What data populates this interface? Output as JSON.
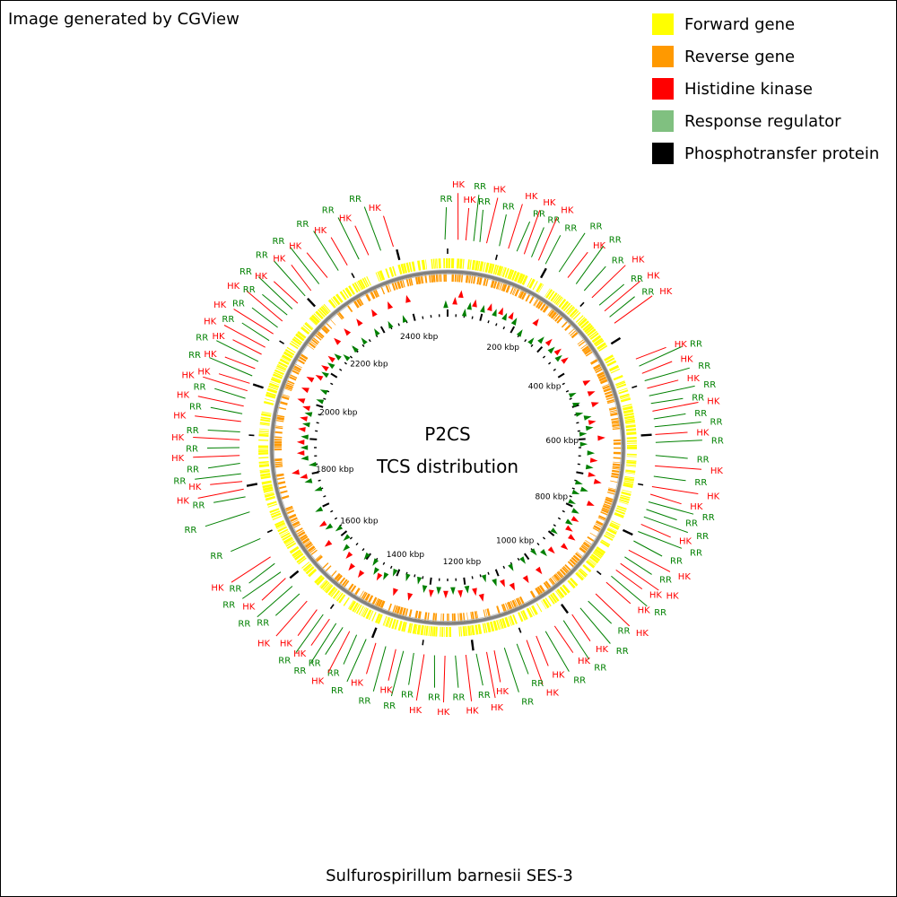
{
  "credit": "Image generated by CGView",
  "organism": "Sulfurospirillum barnesii SES-3",
  "center": {
    "line1": "P2CS",
    "line2": "TCS distribution"
  },
  "legend": [
    {
      "label": "Forward gene",
      "color": "#ffff00"
    },
    {
      "label": "Reverse gene",
      "color": "#ff9900"
    },
    {
      "label": "Histidine kinase",
      "color": "#ff0000"
    },
    {
      "label": "Response regulator",
      "color": "#80c080"
    },
    {
      "label": "Phosphotransfer protein",
      "color": "#000000"
    }
  ],
  "colors": {
    "hk": "#ff0000",
    "rr": "#008000",
    "forward": "#ffff00",
    "reverse": "#ff9900",
    "backbone": "#808080"
  },
  "genome": {
    "length_kbp": 2500,
    "tick_labels": [
      {
        "kbp": 200,
        "label": "200 kbp"
      },
      {
        "kbp": 400,
        "label": "400 kbp"
      },
      {
        "kbp": 600,
        "label": "600 kbp"
      },
      {
        "kbp": 800,
        "label": "800 kbp"
      },
      {
        "kbp": 1000,
        "label": "1000 kbp"
      },
      {
        "kbp": 1200,
        "label": "1200 kbp"
      },
      {
        "kbp": 1400,
        "label": "1400 kbp"
      },
      {
        "kbp": 1600,
        "label": "1600 kbp"
      },
      {
        "kbp": 1800,
        "label": "1800 kbp"
      },
      {
        "kbp": 2000,
        "label": "2000 kbp"
      },
      {
        "kbp": 2200,
        "label": "2200 kbp"
      },
      {
        "kbp": 2400,
        "label": "2400 kbp"
      }
    ]
  },
  "tcs_labels": [
    {
      "kbp": 2495,
      "type": "RR"
    },
    {
      "kbp": 20,
      "type": "HK"
    },
    {
      "kbp": 35,
      "type": "HK"
    },
    {
      "kbp": 50,
      "type": "RR"
    },
    {
      "kbp": 62,
      "type": "RR"
    },
    {
      "kbp": 75,
      "type": "HK"
    },
    {
      "kbp": 100,
      "type": "RR"
    },
    {
      "kbp": 118,
      "type": "HK"
    },
    {
      "kbp": 135,
      "type": "RR"
    },
    {
      "kbp": 150,
      "type": "HK"
    },
    {
      "kbp": 165,
      "type": "RR"
    },
    {
      "kbp": 180,
      "type": "HK"
    },
    {
      "kbp": 195,
      "type": "RR"
    },
    {
      "kbp": 225,
      "type": "RR"
    },
    {
      "kbp": 245,
      "type": "HK"
    },
    {
      "kbp": 265,
      "type": "RR"
    },
    {
      "kbp": 285,
      "type": "RR"
    },
    {
      "kbp": 305,
      "type": "HK"
    },
    {
      "kbp": 325,
      "type": "RR"
    },
    {
      "kbp": 340,
      "type": "HK"
    },
    {
      "kbp": 355,
      "type": "RR"
    },
    {
      "kbp": 370,
      "type": "HK"
    },
    {
      "kbp": 450,
      "type": "HK"
    },
    {
      "kbp": 465,
      "type": "RR"
    },
    {
      "kbp": 480,
      "type": "HK"
    },
    {
      "kbp": 495,
      "type": "RR"
    },
    {
      "kbp": 510,
      "type": "HK"
    },
    {
      "kbp": 525,
      "type": "RR"
    },
    {
      "kbp": 540,
      "type": "RR"
    },
    {
      "kbp": 555,
      "type": "HK"
    },
    {
      "kbp": 570,
      "type": "RR"
    },
    {
      "kbp": 585,
      "type": "RR"
    },
    {
      "kbp": 600,
      "type": "HK"
    },
    {
      "kbp": 615,
      "type": "RR"
    },
    {
      "kbp": 640,
      "type": "RR"
    },
    {
      "kbp": 660,
      "type": "HK"
    },
    {
      "kbp": 680,
      "type": "RR"
    },
    {
      "kbp": 700,
      "type": "HK"
    },
    {
      "kbp": 715,
      "type": "HK"
    },
    {
      "kbp": 730,
      "type": "RR"
    },
    {
      "kbp": 745,
      "type": "RR"
    },
    {
      "kbp": 760,
      "type": "RR"
    },
    {
      "kbp": 775,
      "type": "HK"
    },
    {
      "kbp": 790,
      "type": "RR"
    },
    {
      "kbp": 810,
      "type": "RR"
    },
    {
      "kbp": 830,
      "type": "HK"
    },
    {
      "kbp": 845,
      "type": "RR"
    },
    {
      "kbp": 860,
      "type": "HK"
    },
    {
      "kbp": 875,
      "type": "HK"
    },
    {
      "kbp": 890,
      "type": "RR"
    },
    {
      "kbp": 905,
      "type": "HK"
    },
    {
      "kbp": 935,
      "type": "HK"
    },
    {
      "kbp": 955,
      "type": "RR"
    },
    {
      "kbp": 975,
      "type": "RR"
    },
    {
      "kbp": 995,
      "type": "HK"
    },
    {
      "kbp": 1015,
      "type": "RR"
    },
    {
      "kbp": 1035,
      "type": "HK"
    },
    {
      "kbp": 1055,
      "type": "RR"
    },
    {
      "kbp": 1075,
      "type": "HK"
    },
    {
      "kbp": 1095,
      "type": "HK"
    },
    {
      "kbp": 1115,
      "type": "RR"
    },
    {
      "kbp": 1140,
      "type": "RR"
    },
    {
      "kbp": 1160,
      "type": "HK"
    },
    {
      "kbp": 1175,
      "type": "HK"
    },
    {
      "kbp": 1195,
      "type": "RR"
    },
    {
      "kbp": 1215,
      "type": "HK"
    },
    {
      "kbp": 1235,
      "type": "RR"
    },
    {
      "kbp": 1255,
      "type": "HK"
    },
    {
      "kbp": 1275,
      "type": "RR"
    },
    {
      "kbp": 1295,
      "type": "HK"
    },
    {
      "kbp": 1315,
      "type": "RR"
    },
    {
      "kbp": 1335,
      "type": "RR"
    },
    {
      "kbp": 1350,
      "type": "HK"
    },
    {
      "kbp": 1370,
      "type": "RR"
    },
    {
      "kbp": 1390,
      "type": "HK"
    },
    {
      "kbp": 1410,
      "type": "RR"
    },
    {
      "kbp": 1430,
      "type": "RR"
    },
    {
      "kbp": 1445,
      "type": "HK"
    },
    {
      "kbp": 1460,
      "type": "RR"
    },
    {
      "kbp": 1475,
      "type": "RR"
    },
    {
      "kbp": 1490,
      "type": "HK"
    },
    {
      "kbp": 1505,
      "type": "RR"
    },
    {
      "kbp": 1520,
      "type": "HK"
    },
    {
      "kbp": 1545,
      "type": "HK"
    },
    {
      "kbp": 1565,
      "type": "RR"
    },
    {
      "kbp": 1585,
      "type": "RR"
    },
    {
      "kbp": 1605,
      "type": "HK"
    },
    {
      "kbp": 1620,
      "type": "RR"
    },
    {
      "kbp": 1640,
      "type": "RR"
    },
    {
      "kbp": 1655,
      "type": "HK"
    },
    {
      "kbp": 1695,
      "type": "RR"
    },
    {
      "kbp": 1750,
      "type": "RR"
    },
    {
      "kbp": 1780,
      "type": "RR"
    },
    {
      "kbp": 1795,
      "type": "HK"
    },
    {
      "kbp": 1810,
      "type": "HK"
    },
    {
      "kbp": 1825,
      "type": "RR"
    },
    {
      "kbp": 1845,
      "type": "RR"
    },
    {
      "kbp": 1860,
      "type": "HK"
    },
    {
      "kbp": 1875,
      "type": "RR"
    },
    {
      "kbp": 1890,
      "type": "HK"
    },
    {
      "kbp": 1905,
      "type": "RR"
    },
    {
      "kbp": 1925,
      "type": "HK"
    },
    {
      "kbp": 1940,
      "type": "RR"
    },
    {
      "kbp": 1955,
      "type": "HK"
    },
    {
      "kbp": 1970,
      "type": "RR"
    },
    {
      "kbp": 1985,
      "type": "HK"
    },
    {
      "kbp": 2000,
      "type": "HK"
    },
    {
      "kbp": 2015,
      "type": "RR"
    },
    {
      "kbp": 2030,
      "type": "HK"
    },
    {
      "kbp": 2045,
      "type": "RR"
    },
    {
      "kbp": 2060,
      "type": "HK"
    },
    {
      "kbp": 2075,
      "type": "HK"
    },
    {
      "kbp": 2090,
      "type": "RR"
    },
    {
      "kbp": 2105,
      "type": "HK"
    },
    {
      "kbp": 2120,
      "type": "RR"
    },
    {
      "kbp": 2135,
      "type": "HK"
    },
    {
      "kbp": 2150,
      "type": "RR"
    },
    {
      "kbp": 2165,
      "type": "RR"
    },
    {
      "kbp": 2180,
      "type": "HK"
    },
    {
      "kbp": 2200,
      "type": "RR"
    },
    {
      "kbp": 2215,
      "type": "HK"
    },
    {
      "kbp": 2235,
      "type": "RR"
    },
    {
      "kbp": 2255,
      "type": "HK"
    },
    {
      "kbp": 2280,
      "type": "RR"
    },
    {
      "kbp": 2300,
      "type": "HK"
    },
    {
      "kbp": 2325,
      "type": "RR"
    },
    {
      "kbp": 2345,
      "type": "HK"
    },
    {
      "kbp": 2370,
      "type": "RR"
    },
    {
      "kbp": 2395,
      "type": "HK"
    }
  ]
}
